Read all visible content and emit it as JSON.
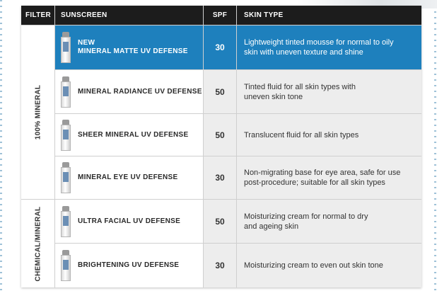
{
  "headers": {
    "filter": "FILTER",
    "sunscreen": "SUNSCREEN",
    "spf": "SPF",
    "skin_type": "SKIN TYPE"
  },
  "filter_groups": [
    {
      "label": "100% MINERAL"
    },
    {
      "label": "CHEMICAL/MINERAL"
    }
  ],
  "products": [
    {
      "badge": "NEW",
      "name": "MINERAL MATTE UV DEFENSE",
      "spf": "30",
      "skin_type_lines": [
        "Lightweight tinted mousse for normal to oily",
        "skin with uneven texture and shine"
      ]
    },
    {
      "name": "MINERAL RADIANCE UV DEFENSE",
      "spf": "50",
      "skin_type_lines": [
        "Tinted fluid for all skin types with",
        "uneven skin tone"
      ]
    },
    {
      "name": "SHEER MINERAL UV DEFENSE",
      "spf": "50",
      "skin_type_lines": [
        "Translucent fluid for all skin types"
      ]
    },
    {
      "name": "MINERAL EYE UV DEFENSE",
      "spf": "30",
      "skin_type_lines": [
        "Non-migrating base for eye area, safe for use",
        "post-procedure; suitable for all skin types"
      ]
    },
    {
      "name": "ULTRA FACIAL UV DEFENSE",
      "spf": "50",
      "skin_type_lines": [
        "Moisturizing cream for normal to dry",
        "and ageing skin"
      ]
    },
    {
      "name": "BRIGHTENING UV DEFENSE",
      "spf": "30",
      "skin_type_lines": [
        "Moisturizing cream to even out skin tone"
      ]
    }
  ],
  "colors": {
    "header_bg": "#1c1c1c",
    "highlight": "#1e80bd",
    "row_gray": "#ededed"
  }
}
